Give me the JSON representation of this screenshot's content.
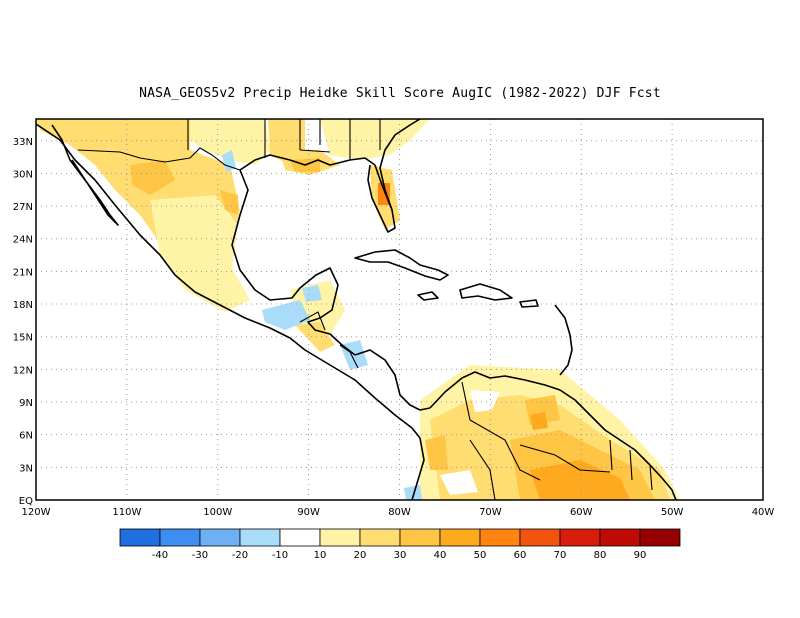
{
  "title": "NASA_GEOS5v2 Precip Heidke Skill Score AugIC (1982-2022) DJF Fcst",
  "map": {
    "lon_range": [
      -120,
      -40
    ],
    "lat_range": [
      0,
      35
    ],
    "lon_ticks": [
      "120W",
      "110W",
      "100W",
      "90W",
      "80W",
      "70W",
      "60W",
      "50W",
      "40W"
    ],
    "lat_ticks": [
      "EQ",
      "3N",
      "6N",
      "9N",
      "12N",
      "15N",
      "18N",
      "21N",
      "24N",
      "27N",
      "30N",
      "33N"
    ],
    "grid": "dotted"
  },
  "colorbar": {
    "labels": [
      "-40",
      "-30",
      "-20",
      "-10",
      "10",
      "20",
      "30",
      "40",
      "50",
      "60",
      "70",
      "80",
      "90"
    ],
    "colors": [
      "#1f6fe0",
      "#3d8ef0",
      "#6fb0f5",
      "#a8dcf8",
      "#ffffff",
      "#fff3a6",
      "#ffdd70",
      "#ffc545",
      "#ffa91e",
      "#ff8410",
      "#f25410",
      "#d81e0a",
      "#c00a05",
      "#960000"
    ]
  },
  "colors": {
    "light_yellow": "#fff3a6",
    "yellow": "#ffdd70",
    "light_orange": "#ffc545",
    "orange": "#ffa91e",
    "deep_orange": "#ff8410",
    "light_blue": "#a8dcf8"
  }
}
